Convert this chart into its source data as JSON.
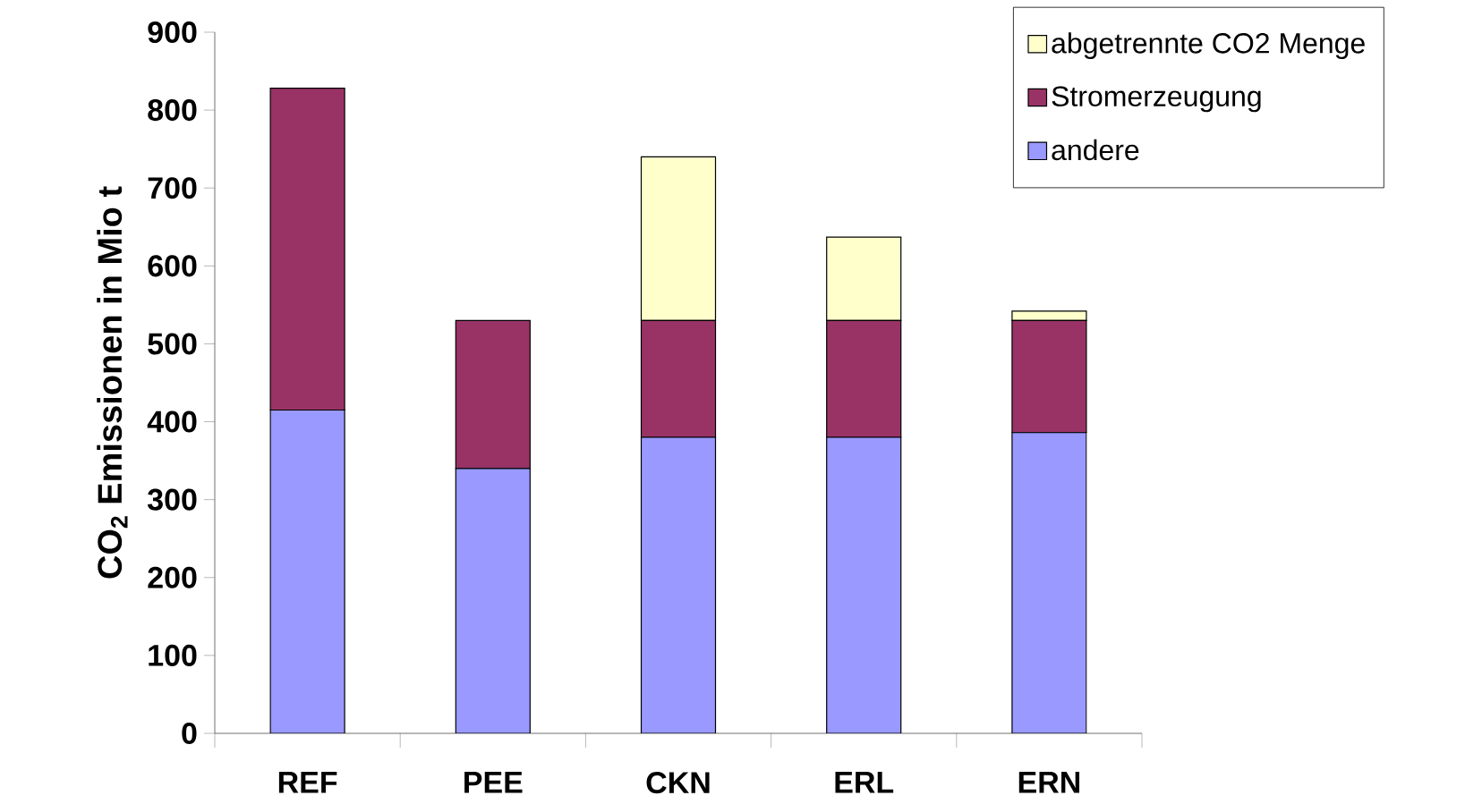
{
  "chart_data": {
    "type": "bar",
    "stacked": true,
    "ylabel": "CO$_{2}$ Emissionen in Mio t",
    "categories": [
      "REF",
      "PEE",
      "CKN",
      "ERL",
      "ERN"
    ],
    "series": [
      {
        "name": "andere",
        "color": "#9999ff",
        "values": [
          415,
          340,
          380,
          380,
          386
        ]
      },
      {
        "name": "Stromerzeugung",
        "color": "#993366",
        "values": [
          413,
          190,
          150,
          150,
          144
        ]
      },
      {
        "name": "abgetrennte CO2 Menge",
        "color": "#ffffcc",
        "values": [
          0,
          0,
          210,
          107,
          12
        ]
      }
    ],
    "ylim": [
      0,
      900
    ],
    "yticks": [
      0,
      100,
      200,
      300,
      400,
      500,
      600,
      700,
      800,
      900
    ],
    "grid": false,
    "legend": "top right"
  }
}
